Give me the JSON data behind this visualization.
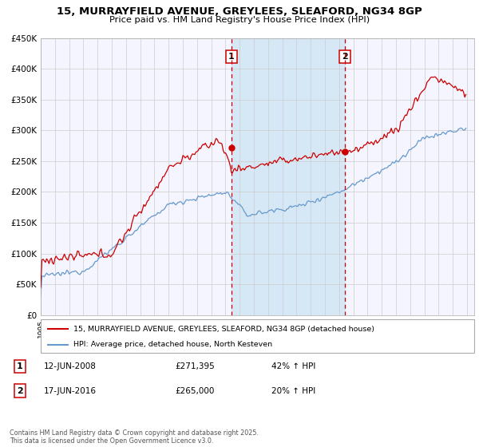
{
  "title": "15, MURRAYFIELD AVENUE, GREYLEES, SLEAFORD, NG34 8GP",
  "subtitle": "Price paid vs. HM Land Registry's House Price Index (HPI)",
  "legend_label_red": "15, MURRAYFIELD AVENUE, GREYLEES, SLEAFORD, NG34 8GP (detached house)",
  "legend_label_blue": "HPI: Average price, detached house, North Kesteven",
  "footer": "Contains HM Land Registry data © Crown copyright and database right 2025.\nThis data is licensed under the Open Government Licence v3.0.",
  "annotation1_date": "12-JUN-2008",
  "annotation1_price": "£271,395",
  "annotation1_hpi": "42% ↑ HPI",
  "annotation2_date": "17-JUN-2016",
  "annotation2_price": "£265,000",
  "annotation2_hpi": "20% ↑ HPI",
  "red_color": "#cc0000",
  "blue_color": "#6699cc",
  "shade_color": "#d6e8f5",
  "grid_color": "#cccccc",
  "plot_bg": "#f5f5ff",
  "yticks": [
    0,
    50000,
    100000,
    150000,
    200000,
    250000,
    300000,
    350000,
    400000,
    450000
  ],
  "ytick_labels": [
    "£0",
    "£50K",
    "£100K",
    "£150K",
    "£200K",
    "£250K",
    "£300K",
    "£350K",
    "£400K",
    "£450K"
  ],
  "xmin": 1995,
  "xmax": 2025.5,
  "ymin": 0,
  "ymax": 450000,
  "event1_year": 2008.45,
  "event1_price": 271395,
  "event2_year": 2016.45,
  "event2_price": 265000
}
